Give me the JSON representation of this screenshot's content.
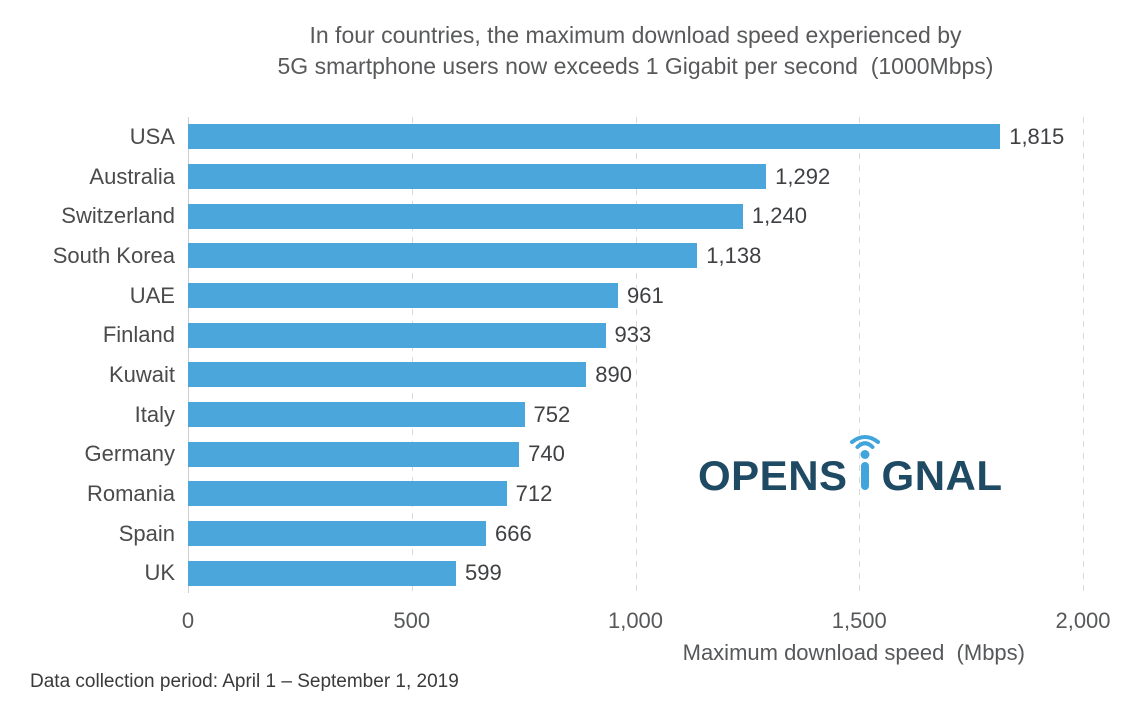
{
  "title_lines": {
    "line1": "In four countries, the maximum download speed experienced by",
    "line2": "5G smartphone users now exceeds 1 Gigabit per second  (1000Mbps)"
  },
  "footer_note": "Data collection period: April 1 – September 1, 2019",
  "logo": {
    "name": "Opensignal",
    "text_before": "OPENS",
    "text_after": "GNAL",
    "navy_color": "#1f4a63",
    "blue_color": "#41A5DC"
  },
  "chart_data": {
    "type": "bar",
    "orientation": "horizontal",
    "title": "In four countries, the maximum download speed experienced by 5G smartphone users now exceeds 1 Gigabit per second (1000Mbps)",
    "categories": [
      "USA",
      "Australia",
      "Switzerland",
      "South Korea",
      "UAE",
      "Finland",
      "Kuwait",
      "Italy",
      "Germany",
      "Romania",
      "Spain",
      "UK"
    ],
    "values": [
      1815,
      1292,
      1240,
      1138,
      961,
      933,
      890,
      752,
      740,
      712,
      666,
      599
    ],
    "value_labels": [
      "1,815",
      "1,292",
      "1,240",
      "1,138",
      "961",
      "933",
      "890",
      "752",
      "740",
      "712",
      "666",
      "599"
    ],
    "xlabel": "Maximum download speed  (Mbps)",
    "ylabel": "",
    "xlim": [
      0,
      2000
    ],
    "xticks": [
      0,
      500,
      1000,
      1500,
      2000
    ],
    "xtick_labels": [
      "0",
      "500",
      "1,000",
      "1,500",
      "2,000"
    ],
    "grid": "vertical-dashed",
    "legend": "none",
    "bar_color": "#4AA6DB",
    "background_color": "#ffffff"
  }
}
